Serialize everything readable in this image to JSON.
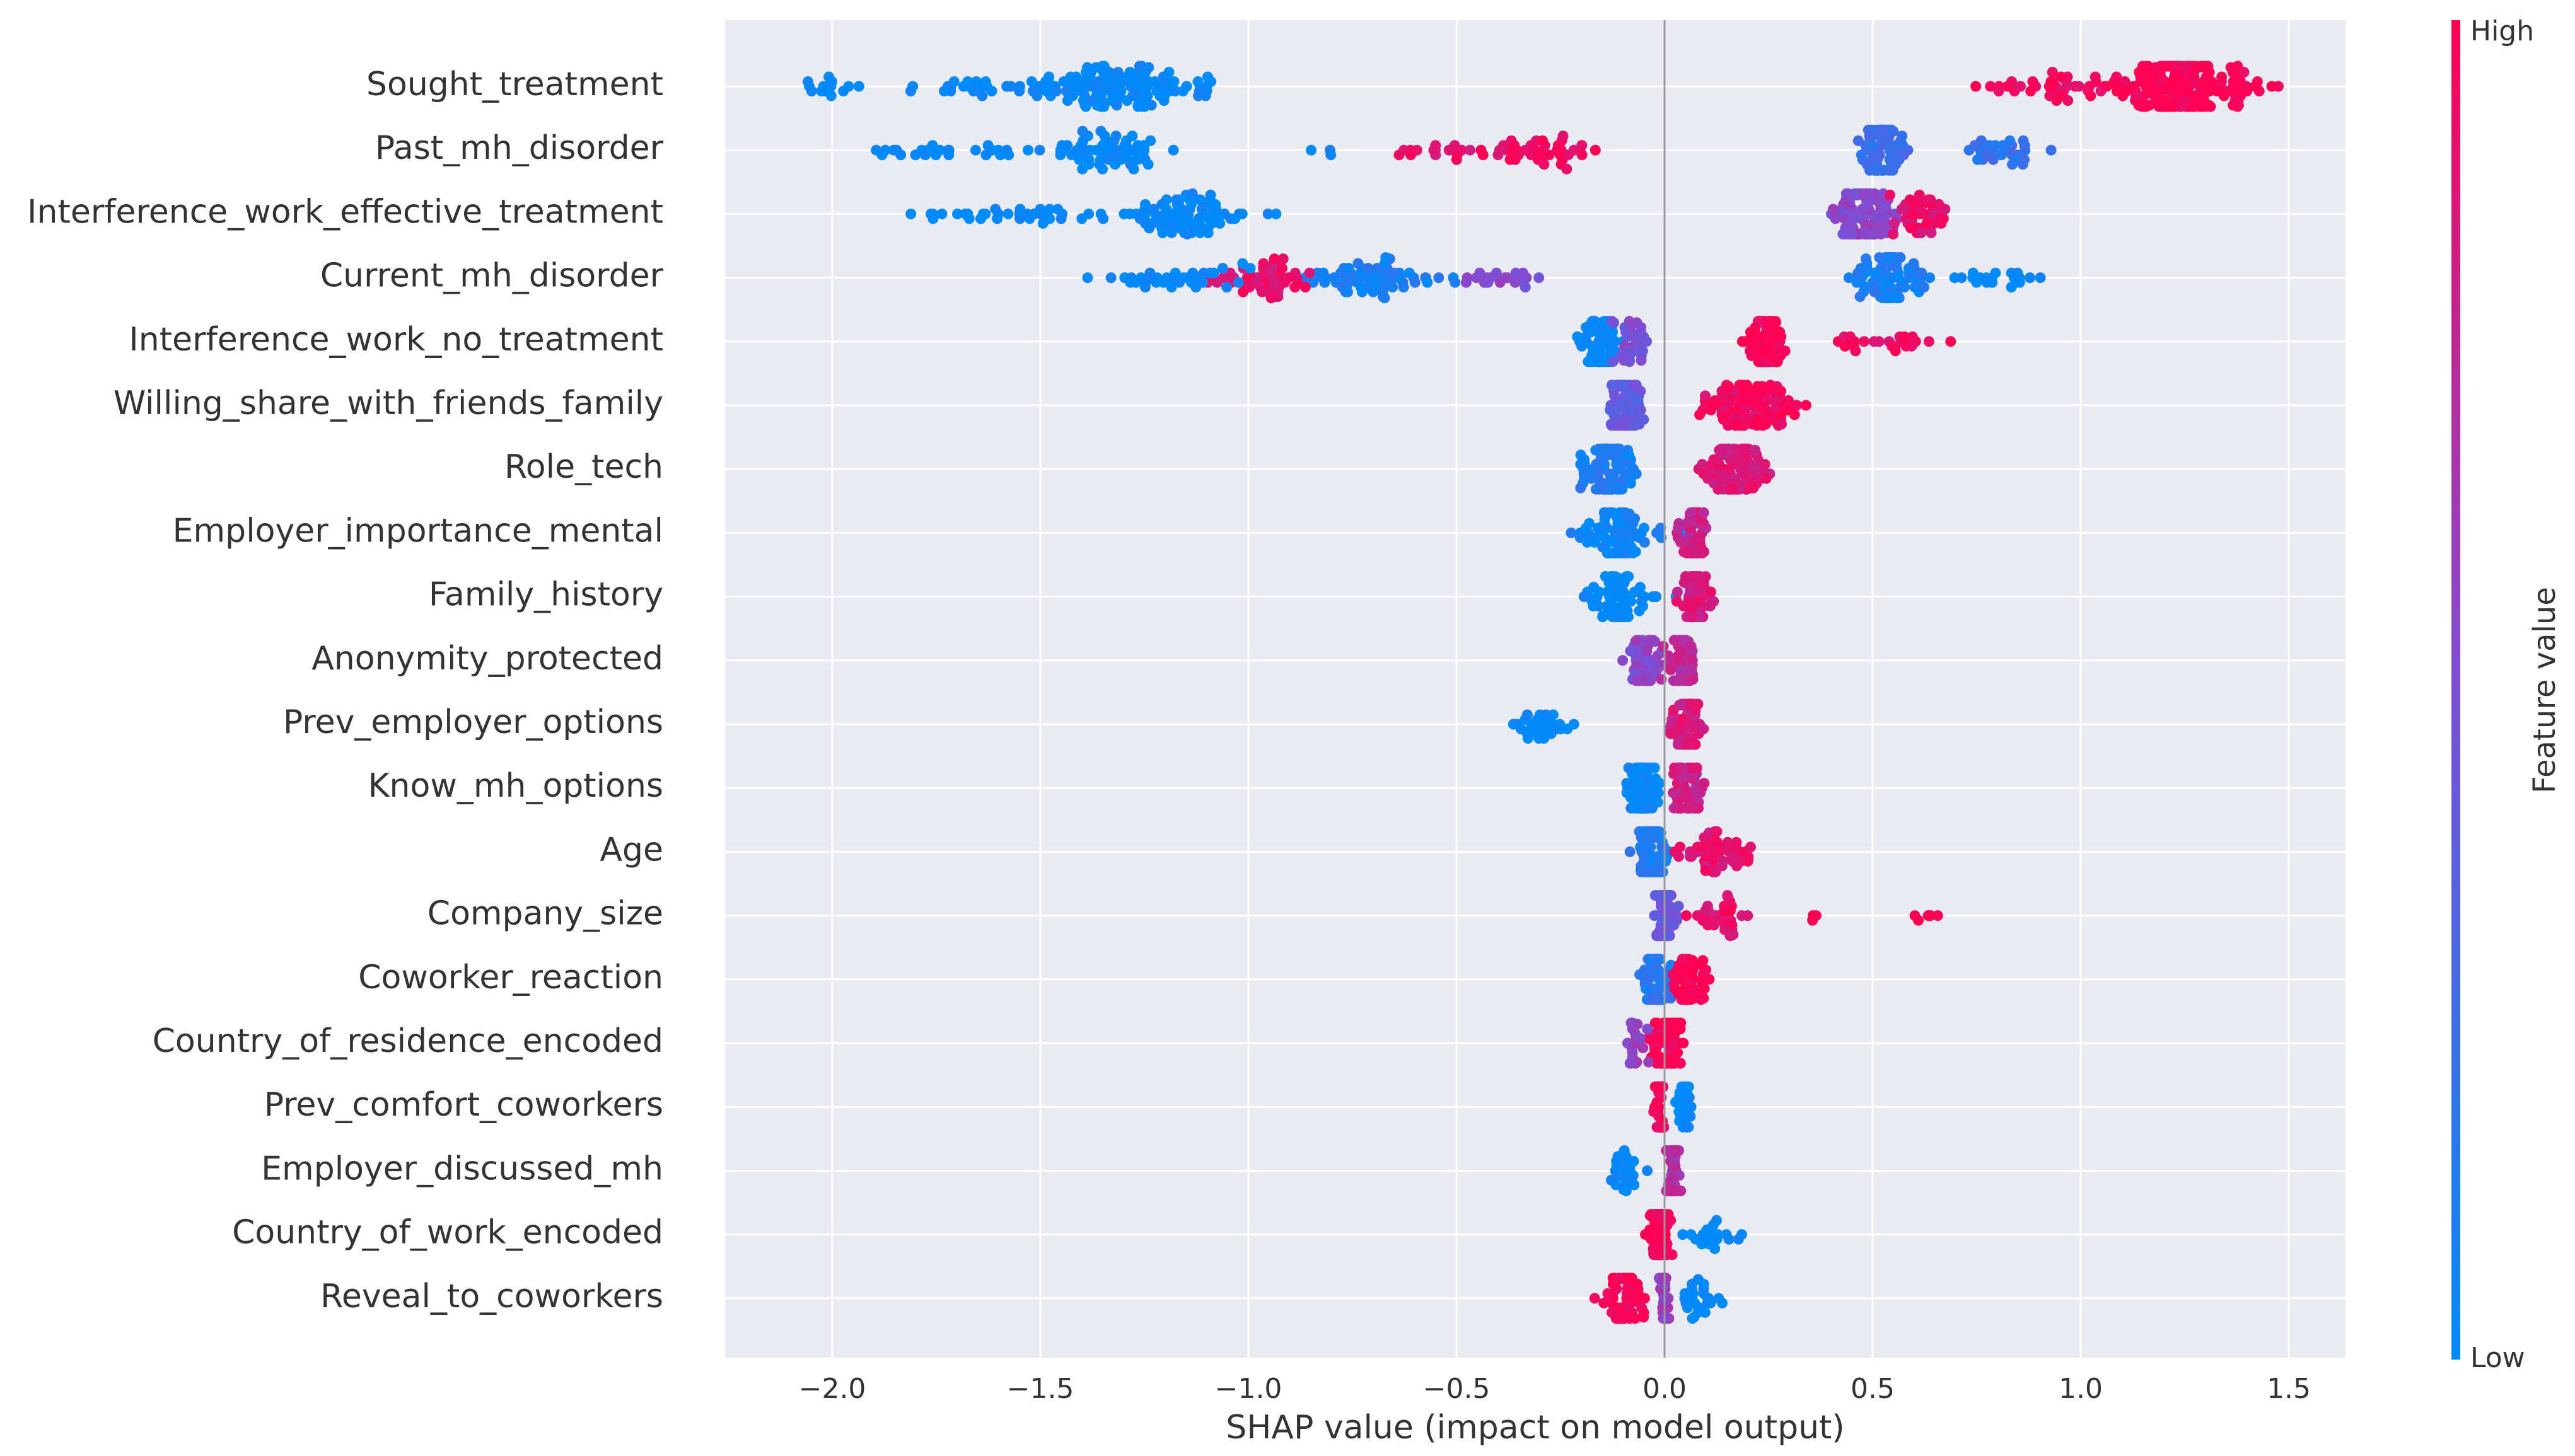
{
  "chart_data": {
    "type": "scatter",
    "subtype": "shap-beeswarm",
    "title": "",
    "xlabel": "SHAP value (impact on model output)",
    "ylabel": "",
    "xlim": [
      -2.25,
      1.63
    ],
    "xticks": [
      -2.0,
      -1.5,
      -1.0,
      -0.5,
      0.0,
      0.5,
      1.0,
      1.5
    ],
    "xtick_labels": [
      "−2.0",
      "−1.5",
      "−1.0",
      "−0.5",
      "0.0",
      "0.5",
      "1.0",
      "1.5"
    ],
    "grid": true,
    "zero_line": true,
    "colorbar": {
      "label": "Feature value",
      "high_label": "High",
      "low_label": "Low",
      "low_color": "#008bfb",
      "mid_color": "#7c4fd8",
      "high_color": "#ff0052"
    },
    "features": [
      {
        "name": "Sought_treatment",
        "clusters": [
          {
            "center": -1.3,
            "spread": 0.12,
            "count": 90,
            "color": 0.0
          },
          {
            "center": -1.55,
            "spread": 0.25,
            "count": 50,
            "color": 0.0
          },
          {
            "center": -2.0,
            "spread": 0.06,
            "count": 12,
            "color": 0.0
          },
          {
            "center": -1.12,
            "spread": 0.04,
            "count": 10,
            "color": 0.0
          },
          {
            "center": 1.22,
            "spread": 0.09,
            "count": 160,
            "color": 1.0
          },
          {
            "center": 0.95,
            "spread": 0.12,
            "count": 40,
            "color": 0.97
          },
          {
            "center": 1.38,
            "spread": 0.06,
            "count": 35,
            "color": 1.0
          }
        ]
      },
      {
        "name": "Past_mh_disorder",
        "clusters": [
          {
            "center": -1.35,
            "spread": 0.12,
            "count": 60,
            "color": 0.0
          },
          {
            "center": -1.72,
            "spread": 0.18,
            "count": 25,
            "color": 0.0
          },
          {
            "center": -0.82,
            "spread": 0.03,
            "count": 3,
            "color": 0.05
          },
          {
            "center": -0.3,
            "spread": 0.12,
            "count": 45,
            "color": 0.95
          },
          {
            "center": -0.55,
            "spread": 0.1,
            "count": 15,
            "color": 0.9
          },
          {
            "center": 0.52,
            "spread": 0.04,
            "count": 80,
            "color": 0.25
          },
          {
            "center": 0.8,
            "spread": 0.1,
            "count": 30,
            "color": 0.2
          }
        ]
      },
      {
        "name": "Interference_work_effective_treatment",
        "clusters": [
          {
            "center": -1.15,
            "spread": 0.12,
            "count": 80,
            "color": 0.0
          },
          {
            "center": -1.6,
            "spread": 0.2,
            "count": 35,
            "color": 0.0
          },
          {
            "center": 0.48,
            "spread": 0.06,
            "count": 110,
            "color": 0.55
          },
          {
            "center": 0.6,
            "spread": 0.05,
            "count": 40,
            "color": 0.9
          }
        ]
      },
      {
        "name": "Current_mh_disorder",
        "clusters": [
          {
            "center": -0.7,
            "spread": 0.15,
            "count": 70,
            "color": 0.1
          },
          {
            "center": -0.95,
            "spread": 0.1,
            "count": 50,
            "color": 0.9
          },
          {
            "center": -1.2,
            "spread": 0.15,
            "count": 35,
            "color": 0.0
          },
          {
            "center": -0.4,
            "spread": 0.1,
            "count": 20,
            "color": 0.55
          },
          {
            "center": 0.55,
            "spread": 0.07,
            "count": 90,
            "color": 0.1
          },
          {
            "center": 0.8,
            "spread": 0.07,
            "count": 20,
            "color": 0.0
          }
        ]
      },
      {
        "name": "Interference_work_no_treatment",
        "clusters": [
          {
            "center": -0.15,
            "spread": 0.05,
            "count": 60,
            "color": 0.0
          },
          {
            "center": -0.08,
            "spread": 0.04,
            "count": 30,
            "color": 0.5
          },
          {
            "center": 0.24,
            "spread": 0.04,
            "count": 80,
            "color": 1.0
          },
          {
            "center": 0.55,
            "spread": 0.12,
            "count": 25,
            "color": 0.95
          }
        ]
      },
      {
        "name": "Willing_share_with_friends_family",
        "clusters": [
          {
            "center": -0.09,
            "spread": 0.04,
            "count": 70,
            "color": 0.4
          },
          {
            "center": 0.22,
            "spread": 0.1,
            "count": 100,
            "color": 0.95
          }
        ]
      },
      {
        "name": "Role_tech",
        "clusters": [
          {
            "center": -0.14,
            "spread": 0.05,
            "count": 100,
            "color": 0.12
          },
          {
            "center": 0.17,
            "spread": 0.06,
            "count": 90,
            "color": 0.85
          }
        ]
      },
      {
        "name": "Employer_importance_mental",
        "clusters": [
          {
            "center": -0.12,
            "spread": 0.07,
            "count": 80,
            "color": 0.05
          },
          {
            "center": 0.07,
            "spread": 0.03,
            "count": 60,
            "color": 0.8
          }
        ]
      },
      {
        "name": "Family_history",
        "clusters": [
          {
            "center": -0.11,
            "spread": 0.06,
            "count": 70,
            "color": 0.0
          },
          {
            "center": 0.07,
            "spread": 0.03,
            "count": 60,
            "color": 0.85
          }
        ]
      },
      {
        "name": "Anonymity_protected",
        "clusters": [
          {
            "center": -0.05,
            "spread": 0.04,
            "count": 50,
            "color": 0.55
          },
          {
            "center": 0.04,
            "spread": 0.03,
            "count": 50,
            "color": 0.75
          }
        ]
      },
      {
        "name": "Prev_employer_options",
        "clusters": [
          {
            "center": -0.3,
            "spread": 0.08,
            "count": 30,
            "color": 0.0
          },
          {
            "center": 0.05,
            "spread": 0.03,
            "count": 70,
            "color": 0.85
          }
        ]
      },
      {
        "name": "Know_mh_options",
        "clusters": [
          {
            "center": -0.05,
            "spread": 0.03,
            "count": 70,
            "color": 0.02
          },
          {
            "center": 0.05,
            "spread": 0.03,
            "count": 60,
            "color": 0.8
          }
        ]
      },
      {
        "name": "Age",
        "clusters": [
          {
            "center": -0.03,
            "spread": 0.03,
            "count": 80,
            "color": 0.12
          },
          {
            "center": 0.12,
            "spread": 0.08,
            "count": 50,
            "color": 0.9
          }
        ]
      },
      {
        "name": "Company_size",
        "clusters": [
          {
            "center": 0.0,
            "spread": 0.02,
            "count": 70,
            "color": 0.45
          },
          {
            "center": 0.12,
            "spread": 0.06,
            "count": 30,
            "color": 0.9
          },
          {
            "center": 0.36,
            "spread": 0.01,
            "count": 3,
            "color": 1.0
          },
          {
            "center": 0.64,
            "spread": 0.03,
            "count": 5,
            "color": 1.0
          }
        ]
      },
      {
        "name": "Coworker_reaction",
        "clusters": [
          {
            "center": -0.02,
            "spread": 0.03,
            "count": 60,
            "color": 0.15
          },
          {
            "center": 0.06,
            "spread": 0.04,
            "count": 50,
            "color": 1.0
          }
        ]
      },
      {
        "name": "Country_of_residence_encoded",
        "clusters": [
          {
            "center": 0.01,
            "spread": 0.03,
            "count": 110,
            "color": 1.0
          },
          {
            "center": -0.07,
            "spread": 0.02,
            "count": 20,
            "color": 0.6
          }
        ]
      },
      {
        "name": "Prev_comfort_coworkers",
        "clusters": [
          {
            "center": -0.01,
            "spread": 0.01,
            "count": 50,
            "color": 1.0
          },
          {
            "center": 0.05,
            "spread": 0.015,
            "count": 30,
            "color": 0.0
          }
        ]
      },
      {
        "name": "Employer_discussed_mh",
        "clusters": [
          {
            "center": 0.02,
            "spread": 0.015,
            "count": 60,
            "color": 0.7
          },
          {
            "center": -0.1,
            "spread": 0.03,
            "count": 25,
            "color": 0.0
          }
        ]
      },
      {
        "name": "Country_of_work_encoded",
        "clusters": [
          {
            "center": -0.01,
            "spread": 0.02,
            "count": 80,
            "color": 1.0
          },
          {
            "center": 0.12,
            "spread": 0.05,
            "count": 20,
            "color": 0.0
          }
        ]
      },
      {
        "name": "Reveal_to_coworkers",
        "clusters": [
          {
            "center": -0.1,
            "spread": 0.04,
            "count": 60,
            "color": 1.0
          },
          {
            "center": 0.0,
            "spread": 0.01,
            "count": 40,
            "color": 0.6
          },
          {
            "center": 0.08,
            "spread": 0.04,
            "count": 25,
            "color": 0.0
          }
        ]
      }
    ]
  }
}
